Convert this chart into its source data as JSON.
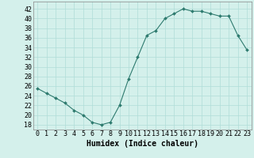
{
  "x": [
    0,
    1,
    2,
    3,
    4,
    5,
    6,
    7,
    8,
    9,
    10,
    11,
    12,
    13,
    14,
    15,
    16,
    17,
    18,
    19,
    20,
    21,
    22,
    23
  ],
  "y": [
    25.5,
    24.5,
    23.5,
    22.5,
    21.0,
    20.0,
    18.5,
    18.0,
    18.5,
    22.0,
    27.5,
    32.0,
    36.5,
    37.5,
    40.0,
    41.0,
    42.0,
    41.5,
    41.5,
    41.0,
    40.5,
    40.5,
    36.5,
    33.5
  ],
  "line_color": "#2d7a6e",
  "marker_color": "#2d7a6e",
  "bg_color": "#d4f0eb",
  "grid_color": "#b0ddd8",
  "xlabel": "Humidex (Indice chaleur)",
  "ylabel_ticks": [
    18,
    20,
    22,
    24,
    26,
    28,
    30,
    32,
    34,
    36,
    38,
    40,
    42
  ],
  "ylim": [
    17.0,
    43.5
  ],
  "xlim": [
    -0.5,
    23.5
  ],
  "xticks": [
    0,
    1,
    2,
    3,
    4,
    5,
    6,
    7,
    8,
    9,
    10,
    11,
    12,
    13,
    14,
    15,
    16,
    17,
    18,
    19,
    20,
    21,
    22,
    23
  ],
  "xtick_labels": [
    "0",
    "1",
    "2",
    "3",
    "4",
    "5",
    "6",
    "7",
    "8",
    "9",
    "10",
    "11",
    "12",
    "13",
    "14",
    "15",
    "16",
    "17",
    "18",
    "19",
    "20",
    "21",
    "22",
    "23"
  ],
  "xlabel_fontsize": 7,
  "tick_fontsize": 6,
  "linewidth": 0.8,
  "markersize": 2.0
}
